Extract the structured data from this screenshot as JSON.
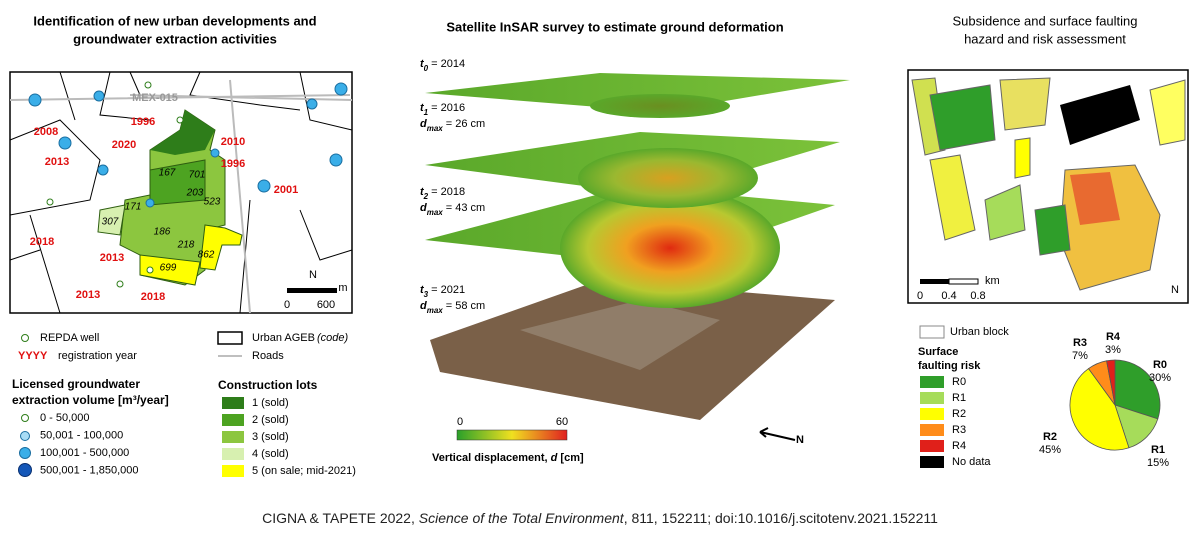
{
  "left": {
    "title": [
      "Identification of new urban developments and",
      "groundwater extraction activities"
    ],
    "road": "MEX-015",
    "years": [
      "2008",
      "2013",
      "2020",
      "1996",
      "2010",
      "1996",
      "2001",
      "2018",
      "2013",
      "2013",
      "2018"
    ],
    "codes": [
      "167",
      "701",
      "203",
      "171",
      "523",
      "307",
      "186",
      "218",
      "862",
      "699"
    ],
    "scale": [
      "0",
      "600",
      "m"
    ],
    "north": "N",
    "legend": {
      "well": "REPDA well",
      "yyyy": "YYYY",
      "year": "registration year",
      "volume_title": [
        "Licensed groundwater",
        "extraction volume [m³/year]"
      ],
      "volumes": [
        "0 - 50,000",
        "50,001 - 100,000",
        "100,001 - 500,000",
        "500,001 - 1,850,000"
      ],
      "ageb": "Urban AGEB",
      "ageb_code": "(code)",
      "roads": "Roads",
      "lots_title": "Construction lots",
      "lots": [
        "1 (sold)",
        "2 (sold)",
        "3 (sold)",
        "4 (sold)",
        "5 (on sale; mid-2021)"
      ]
    }
  },
  "middle": {
    "title": "Satellite InSAR survey to estimate ground deformation",
    "epochs": [
      {
        "t": "t",
        "sub": "0",
        "text": "= 2014"
      },
      {
        "t": "t",
        "sub": "1",
        "text": "= 2016",
        "d": "d",
        "dsub": "max",
        "dtext": "= 26 cm"
      },
      {
        "t": "t",
        "sub": "2",
        "text": "= 2018",
        "d": "d",
        "dsub": "max",
        "dtext": "= 43 cm"
      },
      {
        "t": "t",
        "sub": "3",
        "text": "= 2021",
        "d": "d",
        "dsub": "max",
        "dtext": "= 58 cm"
      }
    ],
    "colorbar": [
      "0",
      "60"
    ],
    "colorbar_label": [
      "Vertical displacement, ",
      "d",
      " [cm]"
    ],
    "north": "N"
  },
  "right": {
    "title": [
      "Subsidence and surface faulting",
      "hazard and risk assessment"
    ],
    "scale": [
      "km",
      "0",
      "0.4",
      "0.8"
    ],
    "north": "N",
    "urban_block": "Urban block",
    "risk_title": [
      "Surface",
      "faulting risk"
    ],
    "legend": [
      "R0",
      "R1",
      "R2",
      "R3",
      "R4",
      "No data"
    ]
  },
  "chart_data": {
    "type": "pie",
    "categories": [
      "R0",
      "R1",
      "R2",
      "R3",
      "R4"
    ],
    "values": [
      30,
      15,
      45,
      7,
      3
    ],
    "value_labels": [
      "30%",
      "15%",
      "45%",
      "7%",
      "3%"
    ],
    "colors": [
      "#2f9e2a",
      "#a6dc5a",
      "#ffff00",
      "#ff8c1a",
      "#e0201a"
    ]
  },
  "caption": {
    "authors": "CIGNA & TAPETE 2022,",
    "journal": "Science of the Total Environment",
    "rest": ", 811, 152211; doi:10.1016/j.scitotenv.2021.152211"
  }
}
